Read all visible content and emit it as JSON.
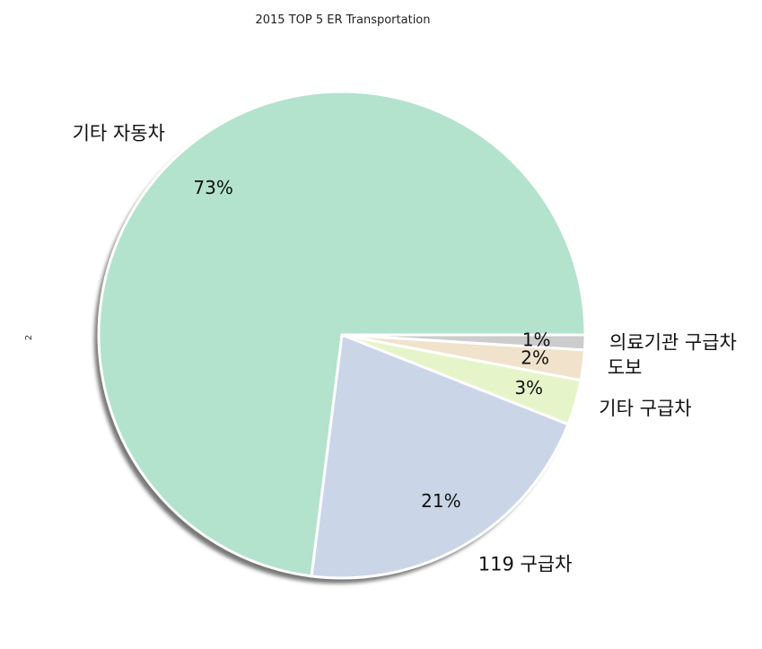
{
  "chart_data": {
    "type": "pie",
    "title": "2015 TOP 5 ER Transportation",
    "ylabel": "2",
    "categories": [
      "의료기관 구급차",
      "도보",
      "기타 구급차",
      "119 구급차",
      "기타 자동차"
    ],
    "values": [
      1,
      2,
      3,
      21,
      73
    ],
    "value_labels": [
      "1%",
      "2%",
      "3%",
      "21%",
      "73%"
    ],
    "colors": [
      "#cccccc",
      "#f1e2cc",
      "#e6f5c9",
      "#cbd5e8",
      "#b3e2cd"
    ],
    "start_angle_deg": 0,
    "direction": "clockwise",
    "shadow": true,
    "legend": "none"
  }
}
